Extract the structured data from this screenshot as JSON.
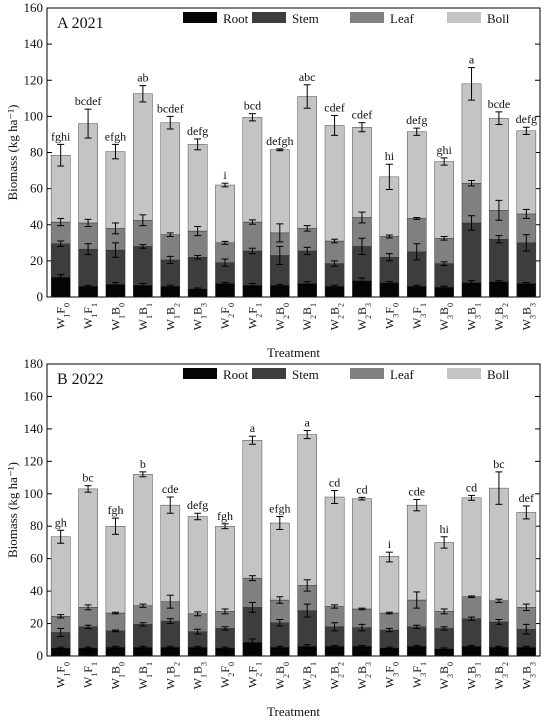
{
  "legend_labels": [
    "Root",
    "Stem",
    "Leaf",
    "Boll"
  ],
  "colors": {
    "root": "#050505",
    "stem": "#3d3d3d",
    "leaf": "#808080",
    "boll": "#c4c4c4",
    "axis": "#000000"
  },
  "chart_data": [
    {
      "type": "bar",
      "stacked": true,
      "panel_label": "A 2021",
      "xlabel": "Treatment",
      "ylabel": "Biomass (kg ha⁻¹)",
      "ylim": [
        0,
        160
      ],
      "yticks": [
        0,
        20,
        40,
        60,
        80,
        100,
        120,
        140,
        160
      ],
      "legend_position": "top-right",
      "categories": [
        {
          "main": "W",
          "sub1": "1",
          "mid": "F",
          "sub2": "0"
        },
        {
          "main": "W",
          "sub1": "1",
          "mid": "F",
          "sub2": "1"
        },
        {
          "main": "W",
          "sub1": "1",
          "mid": "B",
          "sub2": "0"
        },
        {
          "main": "W",
          "sub1": "1",
          "mid": "B",
          "sub2": "1"
        },
        {
          "main": "W",
          "sub1": "1",
          "mid": "B",
          "sub2": "2"
        },
        {
          "main": "W",
          "sub1": "1",
          "mid": "B",
          "sub2": "3"
        },
        {
          "main": "W",
          "sub1": "2",
          "mid": "F",
          "sub2": "0"
        },
        {
          "main": "W",
          "sub1": "2",
          "mid": "F",
          "sub2": "1"
        },
        {
          "main": "W",
          "sub1": "2",
          "mid": "B",
          "sub2": "0"
        },
        {
          "main": "W",
          "sub1": "2",
          "mid": "B",
          "sub2": "1"
        },
        {
          "main": "W",
          "sub1": "2",
          "mid": "B",
          "sub2": "2"
        },
        {
          "main": "W",
          "sub1": "2",
          "mid": "B",
          "sub2": "3"
        },
        {
          "main": "W",
          "sub1": "3",
          "mid": "F",
          "sub2": "0"
        },
        {
          "main": "W",
          "sub1": "3",
          "mid": "F",
          "sub2": "1"
        },
        {
          "main": "W",
          "sub1": "3",
          "mid": "B",
          "sub2": "0"
        },
        {
          "main": "W",
          "sub1": "3",
          "mid": "B",
          "sub2": "1"
        },
        {
          "main": "W",
          "sub1": "3",
          "mid": "B",
          "sub2": "2"
        },
        {
          "main": "W",
          "sub1": "3",
          "mid": "B",
          "sub2": "3"
        }
      ],
      "series": [
        {
          "name": "Root",
          "values": [
            11,
            6,
            7,
            6.5,
            6,
            4.5,
            7.5,
            6.5,
            6.5,
            7.5,
            6,
            9,
            8,
            6,
            5.5,
            8,
            8.5,
            7.5
          ]
        },
        {
          "name": "Stem",
          "values": [
            18.5,
            20.5,
            19,
            21.5,
            14.5,
            17.5,
            11.5,
            19,
            16.5,
            18,
            12.5,
            19,
            14,
            19,
            13,
            33,
            23.5,
            22.5
          ]
        },
        {
          "name": "Leaf",
          "values": [
            12,
            14.5,
            12,
            14.5,
            14,
            14.5,
            11,
            16,
            12.5,
            12.5,
            12.5,
            16,
            11.5,
            18.5,
            14,
            22,
            16,
            16
          ]
        },
        {
          "name": "Boll",
          "values": [
            37,
            55,
            42.5,
            70,
            62,
            48,
            32,
            58,
            46,
            73,
            64,
            50,
            33,
            48,
            42.5,
            55,
            51,
            46
          ]
        }
      ],
      "totals": [
        78.5,
        96,
        80.5,
        112.5,
        96.5,
        84.5,
        62,
        99.5,
        81.5,
        111,
        95,
        94,
        66.5,
        91.5,
        75,
        118,
        99,
        92
      ],
      "total_errors": [
        6,
        8,
        4,
        4.5,
        3.5,
        3,
        1,
        2,
        0.5,
        6.5,
        5.5,
        2.5,
        7,
        2,
        2,
        9,
        3.5,
        2
      ],
      "leaf_top_errors": [
        2,
        2,
        3,
        3,
        1,
        2.5,
        0.8,
        1.2,
        5,
        1.5,
        1,
        3,
        0.8,
        0.5,
        1,
        1.5,
        5.5,
        2.5
      ],
      "stem_top_errors": [
        1.5,
        3,
        4,
        1,
        2,
        1,
        2,
        1.5,
        5,
        2,
        1.5,
        4.5,
        2,
        4.5,
        1,
        4,
        2,
        4.5
      ],
      "root_top_errors": [
        1.5,
        0.5,
        1,
        1,
        0.5,
        0.5,
        0.5,
        1,
        0.5,
        1,
        0.5,
        1.5,
        0.5,
        0.5,
        0.5,
        1,
        0.5,
        0.5
      ],
      "letters": [
        "fghi",
        "bcdef",
        "efgh",
        "ab",
        "bcdef",
        "defg",
        "i",
        "bcd",
        "defgh",
        "abc",
        "cdef",
        "cdef",
        "hi",
        "defg",
        "ghi",
        "a",
        "bcde",
        "defg"
      ]
    },
    {
      "type": "bar",
      "stacked": true,
      "panel_label": "B 2022",
      "xlabel": "Treatment",
      "ylabel": "Biomass (kg ha⁻¹)",
      "ylim": [
        0,
        180
      ],
      "yticks": [
        0,
        20,
        40,
        60,
        80,
        100,
        120,
        140,
        160,
        180
      ],
      "legend_position": "top-right",
      "categories": [
        {
          "main": "W",
          "sub1": "1",
          "mid": "F",
          "sub2": "0"
        },
        {
          "main": "W",
          "sub1": "1",
          "mid": "F",
          "sub2": "1"
        },
        {
          "main": "W",
          "sub1": "1",
          "mid": "B",
          "sub2": "0"
        },
        {
          "main": "W",
          "sub1": "1",
          "mid": "B",
          "sub2": "1"
        },
        {
          "main": "W",
          "sub1": "1",
          "mid": "B",
          "sub2": "2"
        },
        {
          "main": "W",
          "sub1": "1",
          "mid": "B",
          "sub2": "3"
        },
        {
          "main": "W",
          "sub1": "2",
          "mid": "F",
          "sub2": "0"
        },
        {
          "main": "W",
          "sub1": "2",
          "mid": "F",
          "sub2": "1"
        },
        {
          "main": "W",
          "sub1": "2",
          "mid": "B",
          "sub2": "0"
        },
        {
          "main": "W",
          "sub1": "2",
          "mid": "B",
          "sub2": "1"
        },
        {
          "main": "W",
          "sub1": "2",
          "mid": "B",
          "sub2": "2"
        },
        {
          "main": "W",
          "sub1": "2",
          "mid": "B",
          "sub2": "3"
        },
        {
          "main": "W",
          "sub1": "3",
          "mid": "F",
          "sub2": "0"
        },
        {
          "main": "W",
          "sub1": "3",
          "mid": "F",
          "sub2": "1"
        },
        {
          "main": "W",
          "sub1": "3",
          "mid": "B",
          "sub2": "0"
        },
        {
          "main": "W",
          "sub1": "3",
          "mid": "B",
          "sub2": "1"
        },
        {
          "main": "W",
          "sub1": "3",
          "mid": "B",
          "sub2": "2"
        },
        {
          "main": "W",
          "sub1": "3",
          "mid": "B",
          "sub2": "3"
        }
      ],
      "series": [
        {
          "name": "Root",
          "values": [
            5,
            5,
            5.5,
            5.5,
            5.5,
            5.5,
            5,
            8.5,
            5.5,
            6,
            6,
            6,
            5,
            6,
            4.5,
            6,
            5.5,
            5.5
          ]
        },
        {
          "name": "Stem",
          "values": [
            9.5,
            13,
            10,
            14,
            16,
            9.5,
            12,
            21.5,
            15,
            22,
            12,
            11.5,
            11,
            12,
            12.5,
            17,
            15.5,
            11
          ]
        },
        {
          "name": "Leaf",
          "values": [
            10,
            12,
            11,
            11.5,
            12,
            11,
            10.5,
            18,
            14,
            15.5,
            12.5,
            11.5,
            10.5,
            16.5,
            10.5,
            13.5,
            13,
            13.5
          ]
        },
        {
          "name": "Boll",
          "values": [
            49,
            73,
            53.5,
            81,
            59.5,
            60,
            52.5,
            85,
            47.5,
            93,
            67.5,
            68,
            35,
            58.5,
            42.5,
            61,
            69.5,
            58.5
          ]
        }
      ],
      "totals": [
        73.5,
        103,
        80,
        112,
        93,
        86,
        80,
        133,
        82,
        136.5,
        98,
        97,
        61,
        93,
        70,
        97.5,
        103.5,
        88.5
      ],
      "total_errors": [
        4,
        2,
        5,
        1.5,
        5,
        2,
        1.5,
        2.5,
        4,
        2.5,
        4,
        0.8,
        3,
        3.5,
        3.5,
        1.5,
        10,
        4
      ],
      "leaf_top_errors": [
        1,
        1.5,
        0.5,
        1,
        4,
        1.2,
        1.5,
        1.5,
        2,
        3.5,
        1,
        0.5,
        0.5,
        5,
        1.5,
        0.5,
        1,
        2
      ],
      "stem_top_errors": [
        2.5,
        1,
        0.5,
        1,
        1.5,
        1.5,
        1,
        3,
        2,
        4,
        2.5,
        2,
        1,
        1,
        1,
        1,
        1.5,
        3
      ],
      "root_top_errors": [
        0.5,
        0.5,
        0.5,
        0.5,
        0.5,
        0.5,
        0.5,
        2,
        0.5,
        1,
        0.5,
        0.5,
        0.5,
        0.5,
        0.5,
        0.5,
        0.5,
        0.5
      ],
      "letters": [
        "gh",
        "bc",
        "fgh",
        "b",
        "cde",
        "defg",
        "fgh",
        "a",
        "efgh",
        "a",
        "cd",
        "cd",
        "i",
        "cde",
        "hi",
        "cd",
        "bc",
        "def"
      ]
    }
  ]
}
